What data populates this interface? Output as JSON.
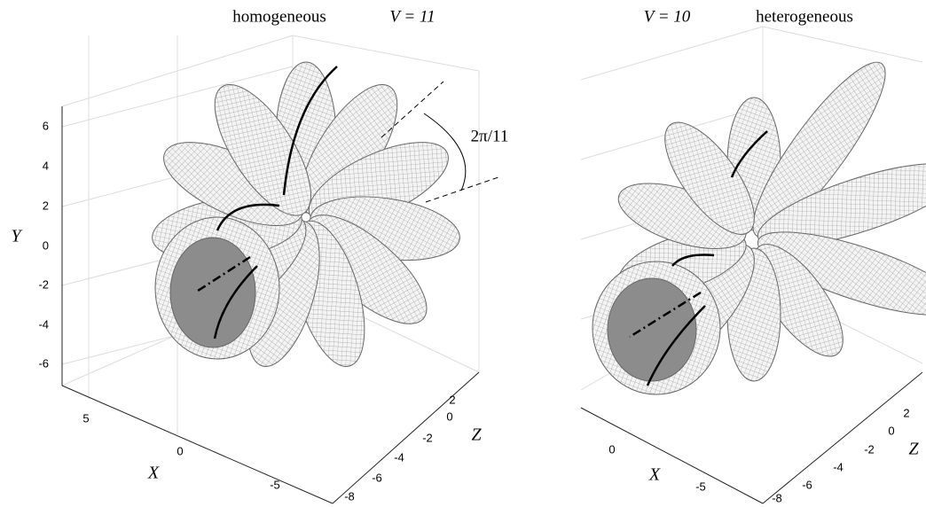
{
  "panels": [
    {
      "title": "homogeneous",
      "label": "V = 11",
      "annotation": "2π/11",
      "y_axis": {
        "label": "Y",
        "ticks": [
          "6",
          "4",
          "2",
          "0",
          "-2",
          "-4",
          "-6"
        ]
      },
      "x_axis": {
        "label": "X",
        "ticks": [
          "5",
          "0",
          "-5"
        ]
      },
      "z_axis": {
        "label": "Z",
        "ticks": [
          "2",
          "0",
          "-2",
          "-4",
          "-6",
          "-8"
        ]
      }
    },
    {
      "title": "heterogeneous",
      "label": "V = 10",
      "x_axis": {
        "label": "X",
        "ticks": [
          "0",
          "-5"
        ]
      },
      "z_axis": {
        "label": "Z",
        "ticks": [
          "2",
          "0",
          "-2",
          "-4",
          "-6",
          "-8"
        ]
      }
    }
  ]
}
